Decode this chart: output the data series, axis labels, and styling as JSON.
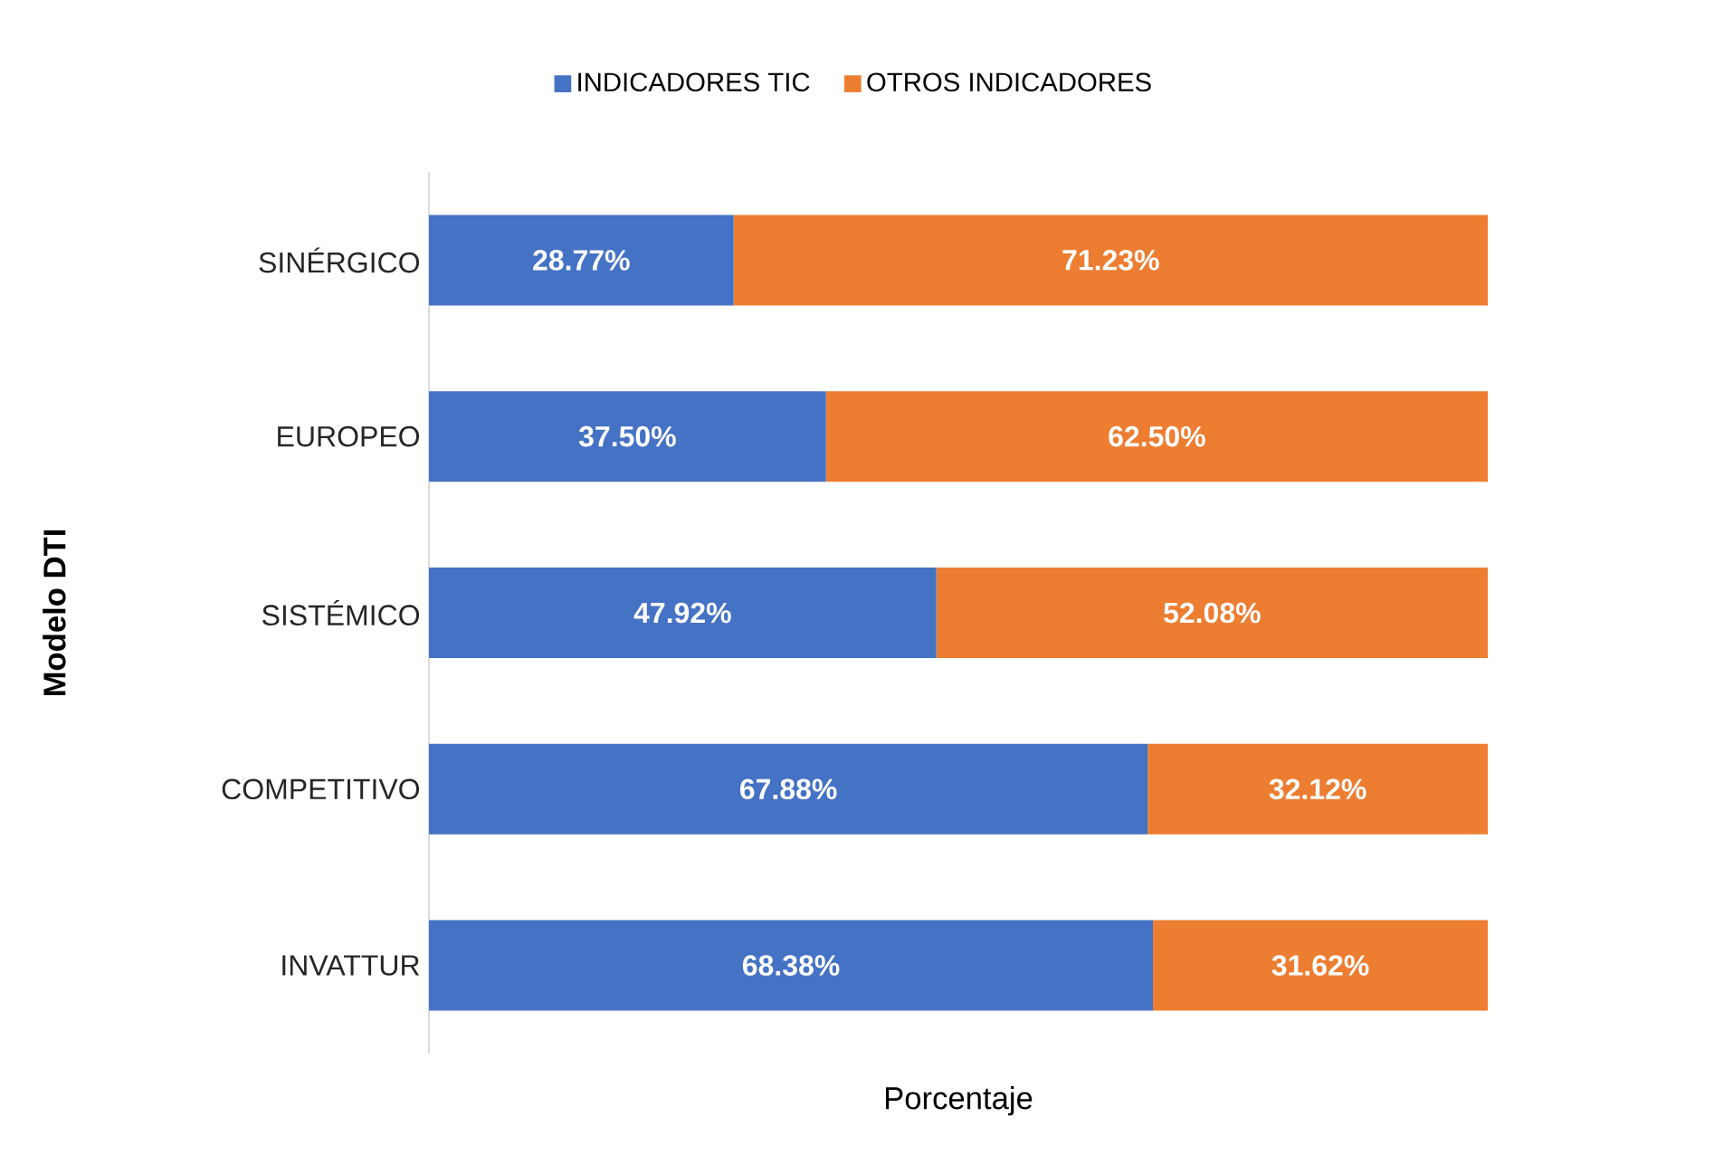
{
  "chart_data": {
    "type": "bar",
    "orientation": "horizontal",
    "stacked": true,
    "xlabel": "Porcentaje",
    "ylabel": "Modelo DTI",
    "categories": [
      "SINÉRGICO",
      "EUROPEO",
      "SISTÉMICO",
      "COMPETITIVO",
      "INVATTUR"
    ],
    "series": [
      {
        "name": "INDICADORES TIC",
        "color": "#4472c4",
        "values": [
          28.77,
          37.5,
          47.92,
          67.88,
          68.38
        ],
        "value_labels": [
          "28.77%",
          "37.50%",
          "47.92%",
          "67.88%",
          "68.38%"
        ]
      },
      {
        "name": "OTROS INDICADORES",
        "color": "#ed7d31",
        "values": [
          71.23,
          62.5,
          52.08,
          32.12,
          31.62
        ],
        "value_labels": [
          "71.23%",
          "62.50%",
          "52.08%",
          "32.12%",
          "31.62%"
        ]
      }
    ],
    "xlim": [
      0,
      100
    ],
    "legend": "top",
    "tick_labels": "y"
  }
}
